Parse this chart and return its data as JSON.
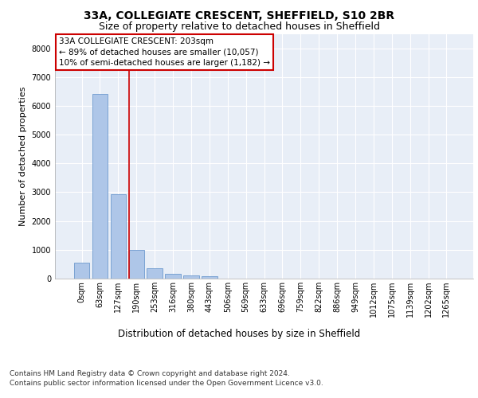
{
  "title": "33A, COLLEGIATE CRESCENT, SHEFFIELD, S10 2BR",
  "subtitle": "Size of property relative to detached houses in Sheffield",
  "xlabel": "Distribution of detached houses by size in Sheffield",
  "ylabel": "Number of detached properties",
  "categories": [
    "0sqm",
    "63sqm",
    "127sqm",
    "190sqm",
    "253sqm",
    "316sqm",
    "380sqm",
    "443sqm",
    "506sqm",
    "569sqm",
    "633sqm",
    "696sqm",
    "759sqm",
    "822sqm",
    "886sqm",
    "949sqm",
    "1012sqm",
    "1075sqm",
    "1139sqm",
    "1202sqm",
    "1265sqm"
  ],
  "values": [
    560,
    6400,
    2920,
    1000,
    370,
    170,
    100,
    80,
    0,
    0,
    0,
    0,
    0,
    0,
    0,
    0,
    0,
    0,
    0,
    0,
    0
  ],
  "bar_color": "#aec6e8",
  "bar_edge_color": "#5b8dc8",
  "vline_x_index": 3,
  "vline_color": "#cc0000",
  "annotation_title": "33A COLLEGIATE CRESCENT: 203sqm",
  "annotation_line1": "← 89% of detached houses are smaller (10,057)",
  "annotation_line2": "10% of semi-detached houses are larger (1,182) →",
  "annotation_box_color": "#cc0000",
  "ylim": [
    0,
    8500
  ],
  "yticks": [
    0,
    1000,
    2000,
    3000,
    4000,
    5000,
    6000,
    7000,
    8000
  ],
  "footer_line1": "Contains HM Land Registry data © Crown copyright and database right 2024.",
  "footer_line2": "Contains public sector information licensed under the Open Government Licence v3.0.",
  "plot_bg_color": "#e8eef7",
  "title_fontsize": 10,
  "subtitle_fontsize": 9,
  "tick_fontsize": 7,
  "ylabel_fontsize": 8,
  "xlabel_fontsize": 8.5,
  "annotation_fontsize": 7.5,
  "footer_fontsize": 6.5
}
